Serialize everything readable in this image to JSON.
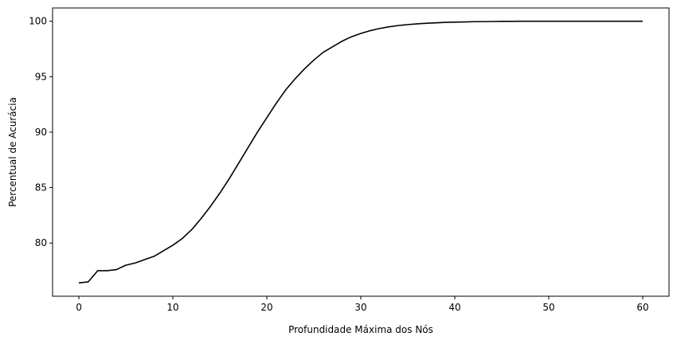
{
  "chart_data": {
    "type": "line",
    "title": "",
    "xlabel": "Profundidade Máxima dos Nós",
    "ylabel": "Percentual de Acurácia",
    "xlim": [
      -2.8,
      62.8
    ],
    "ylim": [
      75.2,
      101.2
    ],
    "xticks": [
      0,
      10,
      20,
      30,
      40,
      50,
      60
    ],
    "yticks": [
      80,
      85,
      90,
      95,
      100
    ],
    "grid": false,
    "legend": "none",
    "series": [
      {
        "color": "#000000",
        "x": [
          0,
          1,
          2,
          3,
          4,
          5,
          6,
          7,
          8,
          9,
          10,
          11,
          12,
          13,
          14,
          15,
          16,
          17,
          18,
          19,
          20,
          21,
          22,
          23,
          24,
          25,
          26,
          27,
          28,
          29,
          30,
          31,
          32,
          33,
          34,
          35,
          36,
          37,
          38,
          39,
          40,
          41,
          42,
          43,
          44,
          45,
          46,
          47,
          48,
          49,
          50,
          51,
          52,
          53,
          54,
          55,
          56,
          57,
          58,
          59,
          60
        ],
        "y": [
          76.4,
          76.5,
          77.5,
          77.5,
          77.6,
          78.0,
          78.2,
          78.5,
          78.8,
          79.3,
          79.8,
          80.4,
          81.2,
          82.2,
          83.3,
          84.5,
          85.8,
          87.2,
          88.6,
          90.0,
          91.3,
          92.6,
          93.8,
          94.8,
          95.7,
          96.5,
          97.2,
          97.7,
          98.2,
          98.6,
          98.9,
          99.15,
          99.35,
          99.5,
          99.62,
          99.7,
          99.77,
          99.82,
          99.86,
          99.9,
          99.92,
          99.94,
          99.96,
          99.97,
          99.98,
          99.99,
          99.99,
          100,
          100,
          100,
          100,
          100,
          100,
          100,
          100,
          100,
          100,
          100,
          100,
          100,
          100
        ]
      }
    ]
  }
}
